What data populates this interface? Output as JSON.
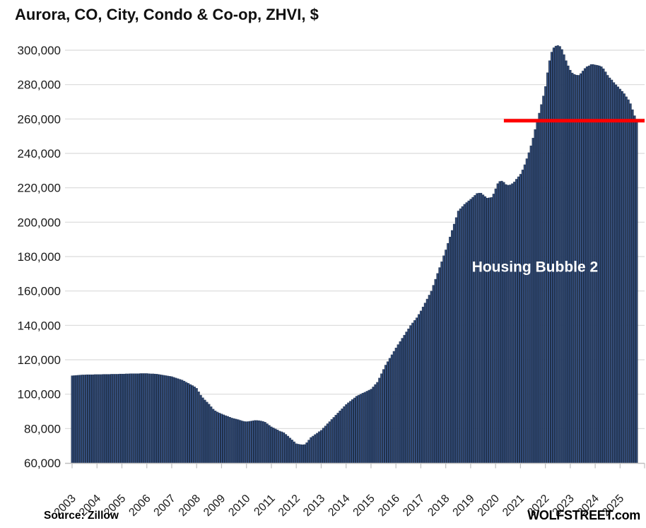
{
  "header": {
    "title": "Aurora, CO, City, Condo & Co-op, ZHVI, $"
  },
  "footer": {
    "source": "Source: Zillow",
    "brand": "WOLFSTREET.com"
  },
  "chart_data": {
    "type": "bar",
    "title": "Aurora, CO, City, Condo & Co-op, ZHVI, $",
    "xlabel": "",
    "ylabel": "ZHVI, $",
    "x_start_month": "2003-01",
    "x_end_month": "2025-09",
    "x_tick_years": [
      2003,
      2004,
      2005,
      2006,
      2007,
      2008,
      2009,
      2010,
      2011,
      2012,
      2013,
      2014,
      2015,
      2016,
      2017,
      2018,
      2019,
      2020,
      2021,
      2022,
      2023,
      2024,
      2025
    ],
    "y_ticks": [
      60000,
      80000,
      100000,
      120000,
      140000,
      160000,
      180000,
      200000,
      220000,
      240000,
      260000,
      280000,
      300000
    ],
    "ylim": [
      60000,
      305000
    ],
    "grid": "horizontal",
    "legend": "none",
    "values": [
      110800,
      110900,
      111000,
      111100,
      111200,
      111300,
      111300,
      111400,
      111400,
      111400,
      111400,
      111500,
      111500,
      111500,
      111500,
      111600,
      111600,
      111600,
      111600,
      111700,
      111700,
      111700,
      111700,
      111800,
      111800,
      111800,
      111900,
      111900,
      112000,
      112000,
      112000,
      112000,
      112000,
      112100,
      112100,
      112100,
      112100,
      112000,
      111900,
      111900,
      111800,
      111700,
      111500,
      111300,
      111100,
      110900,
      110700,
      110500,
      110300,
      109900,
      109500,
      109100,
      108700,
      108300,
      107700,
      107000,
      106400,
      105700,
      105100,
      104400,
      103500,
      101500,
      99500,
      98000,
      96700,
      95500,
      94300,
      92800,
      91400,
      90400,
      89700,
      89100,
      88600,
      88100,
      87600,
      87200,
      86700,
      86200,
      85900,
      85600,
      85300,
      84900,
      84500,
      84200,
      84100,
      84200,
      84400,
      84600,
      84800,
      84800,
      84700,
      84500,
      84200,
      83800,
      82900,
      82000,
      81100,
      80500,
      79900,
      79300,
      78600,
      78200,
      77700,
      76700,
      75700,
      74600,
      73500,
      72400,
      71300,
      71000,
      70800,
      70700,
      70800,
      71900,
      73400,
      74900,
      75700,
      76600,
      77400,
      78300,
      79100,
      80400,
      81600,
      82900,
      84100,
      85400,
      86600,
      87900,
      89100,
      90400,
      91600,
      92900,
      94100,
      95100,
      96000,
      97000,
      97900,
      98900,
      99500,
      100100,
      100700,
      101200,
      101800,
      102400,
      103000,
      104300,
      105700,
      107000,
      109500,
      112000,
      114500,
      117000,
      119000,
      121000,
      123000,
      125000,
      127000,
      128900,
      130700,
      132600,
      134400,
      136300,
      138100,
      140000,
      141500,
      143000,
      144500,
      146500,
      148500,
      150800,
      153100,
      155400,
      157700,
      160000,
      163400,
      166900,
      170300,
      173700,
      177100,
      180600,
      184000,
      187800,
      191500,
      195300,
      199000,
      202800,
      206600,
      207900,
      209200,
      210500,
      211500,
      212500,
      213500,
      214600,
      215700,
      216800,
      217000,
      217000,
      216000,
      215000,
      214100,
      214300,
      214500,
      216500,
      219500,
      222500,
      223800,
      224000,
      223300,
      222000,
      221600,
      221800,
      222500,
      223500,
      225100,
      226500,
      228000,
      230500,
      233500,
      237000,
      240500,
      244500,
      249000,
      254000,
      259000,
      263500,
      268500,
      273500,
      279000,
      287000,
      294000,
      299000,
      301500,
      302500,
      302800,
      302300,
      300500,
      297500,
      294000,
      291000,
      288500,
      286800,
      286000,
      285600,
      285500,
      286500,
      288000,
      289500,
      290500,
      291000,
      291800,
      291800,
      291500,
      291300,
      291000,
      290500,
      289300,
      287500,
      285500,
      284000,
      282800,
      281300,
      280000,
      278800,
      277500,
      276200,
      274800,
      273000,
      271300,
      269000,
      265500,
      262000,
      258500
    ],
    "red_line": {
      "value": 259000,
      "start_month": "2020-05",
      "color": "#ff0000"
    },
    "annotation": {
      "text": "Housing Bubble 2",
      "anchor_month": "2021-08",
      "anchor_value": 174000,
      "color": "#ffffff"
    },
    "colors": {
      "bar": "#1f2e47",
      "bar_stripe": "#3e5f99",
      "gridline": "#d9d9d9",
      "axis": "#bfbfbf",
      "label": "#1a1a1a"
    }
  }
}
